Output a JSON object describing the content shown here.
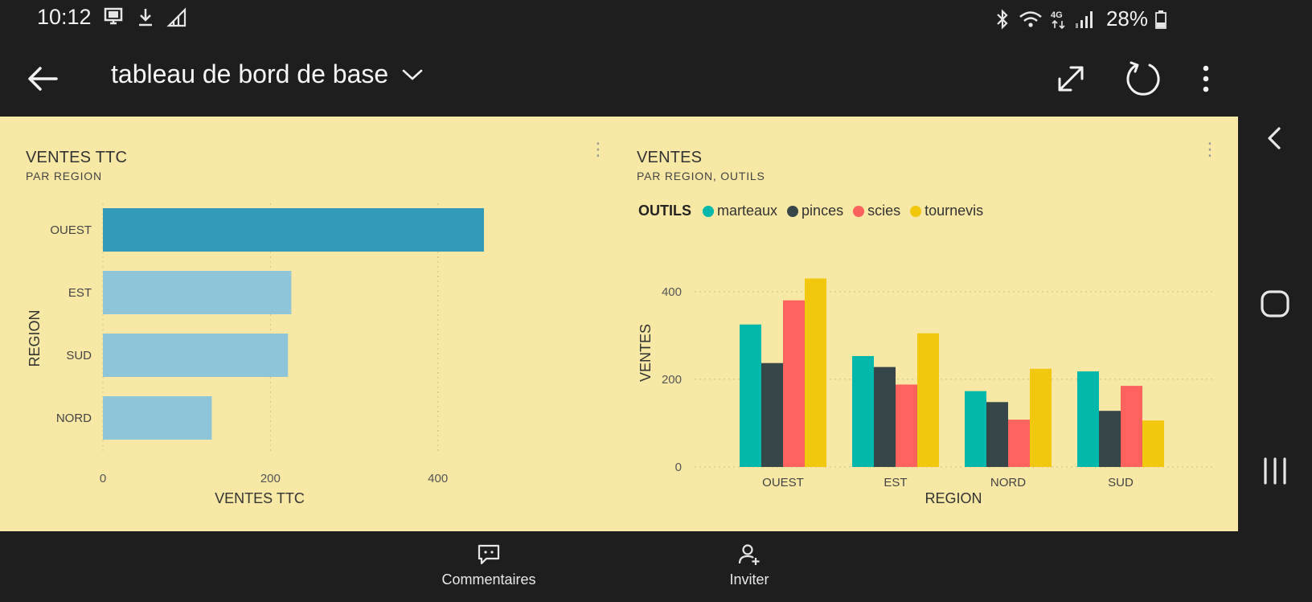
{
  "status_bar": {
    "time": "10:12",
    "left_icons": [
      "screen-share-icon",
      "download-icon",
      "signal-outline-icon"
    ],
    "right_icons": [
      "bluetooth-icon",
      "wifi-icon",
      "network-4g-icon",
      "cell-signal-icon"
    ],
    "battery": "28%"
  },
  "header": {
    "title": "tableau de bord de base",
    "icons": [
      "back-arrow-icon",
      "chevron-down-icon",
      "fullscreen-icon",
      "refresh-icon",
      "more-vertical-icon"
    ]
  },
  "colors": {
    "dashboard_bg": "#f7e8a5",
    "bar_highlight": "#3399b8",
    "bar_light": "#8ec5d9",
    "marteaux": "#01b8aa",
    "pinces": "#374649",
    "scies": "#fd625e",
    "tournevis": "#f2c80f"
  },
  "tiles": {
    "left": {
      "title": "VENTES TTC",
      "subtitle": "PAR REGION"
    },
    "right": {
      "title": "VENTES",
      "subtitle": "PAR REGION, OUTILS",
      "legend_title": "OUTILS"
    }
  },
  "chart_data": [
    {
      "type": "bar",
      "orientation": "horizontal",
      "title": "VENTES TTC",
      "subtitle": "PAR REGION",
      "categories": [
        "OUEST",
        "EST",
        "SUD",
        "NORD"
      ],
      "values": [
        455,
        225,
        221,
        130
      ],
      "highlighted_category": "OUEST",
      "xlabel": "VENTES TTC",
      "ylabel": "REGION",
      "xticks": [
        0,
        200,
        400
      ],
      "xlim": [
        0,
        480
      ],
      "grid": true
    },
    {
      "type": "bar",
      "orientation": "vertical",
      "title": "VENTES",
      "subtitle": "PAR REGION, OUTILS",
      "categories": [
        "OUEST",
        "EST",
        "NORD",
        "SUD"
      ],
      "series": [
        {
          "name": "marteaux",
          "values": [
            325,
            253,
            173,
            218
          ]
        },
        {
          "name": "pinces",
          "values": [
            237,
            228,
            148,
            128
          ]
        },
        {
          "name": "scies",
          "values": [
            380,
            188,
            108,
            185
          ]
        },
        {
          "name": "tournevis",
          "values": [
            430,
            305,
            224,
            106
          ]
        }
      ],
      "legend_title": "OUTILS",
      "legend_position": "top-left",
      "xlabel": "REGION",
      "ylabel": "VENTES",
      "yticks": [
        0,
        200,
        400
      ],
      "ylim": [
        0,
        440
      ],
      "grid": true
    }
  ],
  "edge_nav": {
    "icons": [
      "chevron-left-icon",
      "home-icon",
      "recent-apps-icon"
    ]
  },
  "bottom_bar": {
    "comments_label": "Commentaires",
    "invite_label": "Inviter"
  }
}
